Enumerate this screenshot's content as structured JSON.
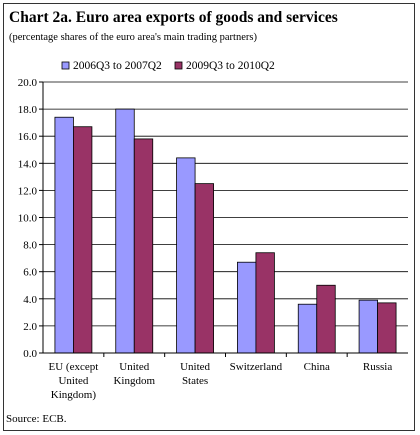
{
  "title": "Chart 2a. Euro area exports of goods and services",
  "subtitle": "(percentage shares of the euro area's main trading partners)",
  "source": "Source: ECB.",
  "chart_data": {
    "type": "bar",
    "categories": [
      [
        "EU  (except",
        "United",
        "Kingdom)"
      ],
      [
        "United",
        "Kingdom"
      ],
      [
        "United",
        "States"
      ],
      [
        "Switzerland"
      ],
      [
        "China"
      ],
      [
        "Russia"
      ]
    ],
    "series": [
      {
        "name": "2006Q3 to 2007Q2",
        "color": "#9999ff",
        "values": [
          17.4,
          18.0,
          14.4,
          6.7,
          3.6,
          3.9
        ]
      },
      {
        "name": "2009Q3 to 2010Q2",
        "color": "#993366",
        "values": [
          16.7,
          15.8,
          12.5,
          7.4,
          5.0,
          3.7
        ]
      }
    ],
    "ylim": [
      0,
      20
    ],
    "ystep": 2,
    "ytick_labels": [
      "0.0",
      "2.0",
      "4.0",
      "6.0",
      "8.0",
      "10.0",
      "12.0",
      "14.0",
      "16.0",
      "18.0",
      "20.0"
    ],
    "grid": true,
    "legend": "top"
  }
}
